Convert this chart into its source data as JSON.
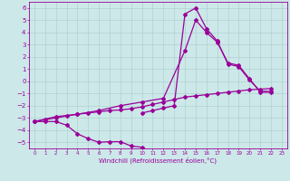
{
  "xlabel": "Windchill (Refroidissement éolien,°C)",
  "bg_color": "#cce8e8",
  "line_color": "#990099",
  "marker": "D",
  "markersize": 2.0,
  "linewidth": 0.9,
  "xlim": [
    -0.5,
    23.5
  ],
  "ylim": [
    -5.5,
    6.5
  ],
  "xticks": [
    0,
    1,
    2,
    3,
    4,
    5,
    6,
    7,
    8,
    9,
    10,
    11,
    12,
    13,
    14,
    15,
    16,
    17,
    18,
    19,
    20,
    21,
    22,
    23
  ],
  "yticks": [
    -5,
    -4,
    -3,
    -2,
    -1,
    0,
    1,
    2,
    3,
    4,
    5,
    6
  ],
  "series": [
    [
      [
        0,
        -3.3
      ],
      [
        1,
        -3.3
      ],
      [
        2,
        -3.3
      ],
      [
        3,
        -3.6
      ],
      [
        4,
        -4.3
      ],
      [
        5,
        -4.7
      ],
      [
        6,
        -5.0
      ],
      [
        7,
        -4.95
      ],
      [
        8,
        -4.95
      ],
      [
        9,
        -5.3
      ],
      [
        10,
        -5.4
      ]
    ],
    [
      [
        0,
        -3.3
      ],
      [
        1,
        -3.1
      ],
      [
        2,
        -2.9
      ],
      [
        3,
        -2.8
      ],
      [
        4,
        -2.7
      ],
      [
        5,
        -2.6
      ],
      [
        6,
        -2.5
      ],
      [
        7,
        -2.4
      ],
      [
        8,
        -2.35
      ],
      [
        9,
        -2.25
      ],
      [
        10,
        -2.1
      ],
      [
        11,
        -1.9
      ],
      [
        12,
        -1.7
      ],
      [
        13,
        -1.5
      ],
      [
        14,
        -1.3
      ],
      [
        15,
        -1.2
      ],
      [
        16,
        -1.1
      ],
      [
        17,
        -1.0
      ],
      [
        18,
        -0.9
      ],
      [
        19,
        -0.8
      ],
      [
        20,
        -0.7
      ],
      [
        21,
        -0.65
      ],
      [
        22,
        -0.6
      ]
    ],
    [
      [
        0,
        -3.3
      ],
      [
        2,
        -3.0
      ],
      [
        4,
        -2.7
      ],
      [
        6,
        -2.4
      ],
      [
        8,
        -2.0
      ],
      [
        10,
        -1.7
      ],
      [
        12,
        -1.4
      ],
      [
        14,
        2.5
      ],
      [
        15,
        5.0
      ],
      [
        16,
        4.0
      ],
      [
        17,
        3.2
      ],
      [
        18,
        1.5
      ],
      [
        19,
        1.3
      ],
      [
        20,
        0.2
      ],
      [
        21,
        -0.9
      ],
      [
        22,
        -0.9
      ]
    ],
    [
      [
        10,
        -2.6
      ],
      [
        11,
        -2.4
      ],
      [
        12,
        -2.2
      ],
      [
        13,
        -2.0
      ],
      [
        14,
        5.5
      ],
      [
        15,
        6.0
      ],
      [
        16,
        4.3
      ],
      [
        17,
        3.3
      ],
      [
        18,
        1.4
      ],
      [
        19,
        1.2
      ],
      [
        20,
        0.1
      ],
      [
        21,
        -0.8
      ],
      [
        22,
        -0.85
      ]
    ]
  ]
}
